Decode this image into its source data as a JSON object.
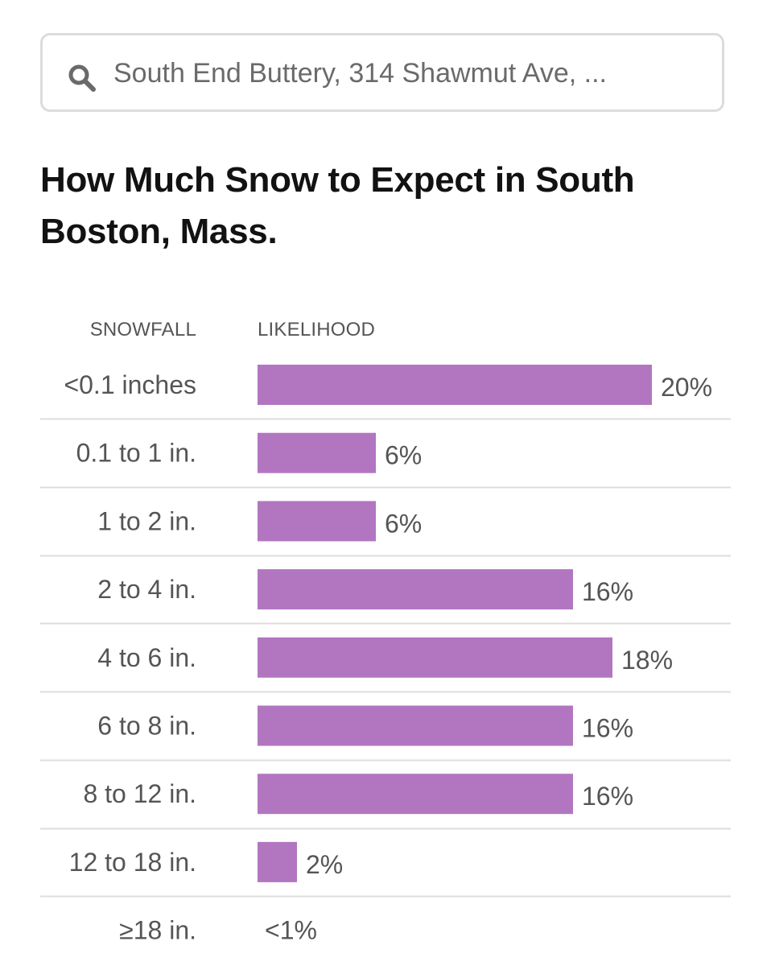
{
  "search": {
    "placeholder": "South End Buttery, 314 Shawmut Ave, ..."
  },
  "title": "How Much Snow to Expect in South Boston, Mass.",
  "colors": {
    "bar": "#b276c0",
    "divider": "#dddddd",
    "row_label": "#555555",
    "value_label": "#555555"
  },
  "chart_data": {
    "type": "bar",
    "orientation": "horizontal",
    "title": "How Much Snow to Expect in South Boston, Mass.",
    "category_header": "SNOWFALL",
    "value_header": "LIKELIHOOD",
    "categories": [
      "<0.1 inches",
      "0.1 to 1 in.",
      "1 to 2 in.",
      "2 to 4 in.",
      "4 to 6 in.",
      "6 to 8 in.",
      "8 to 12 in.",
      "12 to 18 in.",
      "≥18 in."
    ],
    "values": [
      20,
      6,
      6,
      16,
      18,
      16,
      16,
      2,
      0
    ],
    "value_labels": [
      "20%",
      "6%",
      "6%",
      "16%",
      "18%",
      "16%",
      "16%",
      "2%",
      "<1%"
    ],
    "unit": "%",
    "xlim": [
      0,
      20
    ],
    "grid": false,
    "legend": "none"
  }
}
